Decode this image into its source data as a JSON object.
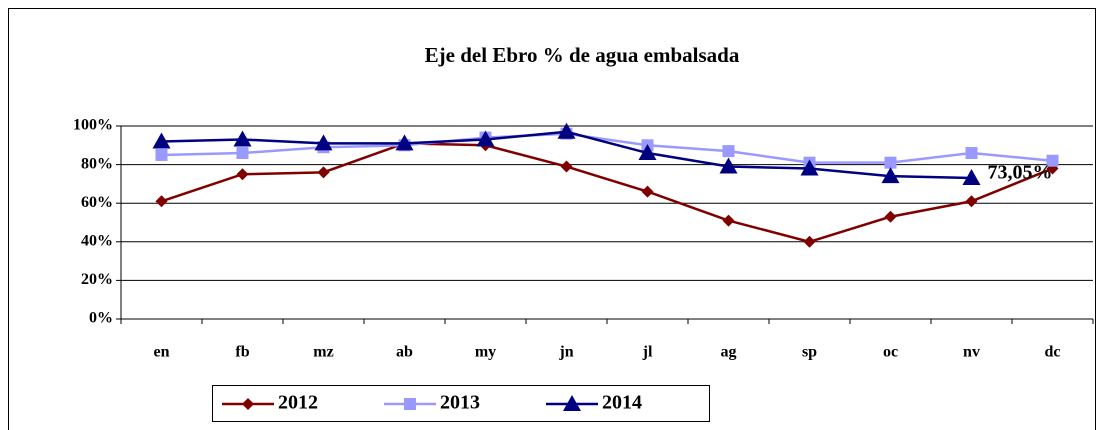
{
  "chart_data": {
    "type": "line",
    "title": "Eje del Ebro % de agua embalsada",
    "categories": [
      "en",
      "fb",
      "mz",
      "ab",
      "my",
      "jn",
      "jl",
      "ag",
      "sp",
      "oc",
      "nv",
      "dc"
    ],
    "series": [
      {
        "name": "2012",
        "color": "#800000",
        "marker": "diamond",
        "values": [
          61,
          75,
          76,
          91,
          90,
          79,
          66,
          51,
          40,
          53,
          61,
          78
        ]
      },
      {
        "name": "2013",
        "color": "#9999ff",
        "marker": "square",
        "values": [
          85,
          86,
          89,
          90,
          94,
          96,
          90,
          87,
          81,
          81,
          86,
          82
        ]
      },
      {
        "name": "2014",
        "color": "#000080",
        "marker": "triangle",
        "values": [
          92,
          93,
          91,
          91,
          93,
          97,
          86,
          79,
          78,
          74,
          73.05,
          null
        ],
        "value_labels": [
          null,
          null,
          null,
          null,
          null,
          null,
          null,
          null,
          null,
          null,
          "73,05%",
          null
        ]
      }
    ],
    "ylim": [
      0,
      100
    ],
    "yticks": [
      {
        "value": 0,
        "label": "0%"
      },
      {
        "value": 20,
        "label": "20%"
      },
      {
        "value": 40,
        "label": "40%"
      },
      {
        "value": 60,
        "label": "60%"
      },
      {
        "value": 80,
        "label": "80%"
      },
      {
        "value": 100,
        "label": "100%"
      }
    ],
    "grid": true,
    "legend": "bottom"
  }
}
